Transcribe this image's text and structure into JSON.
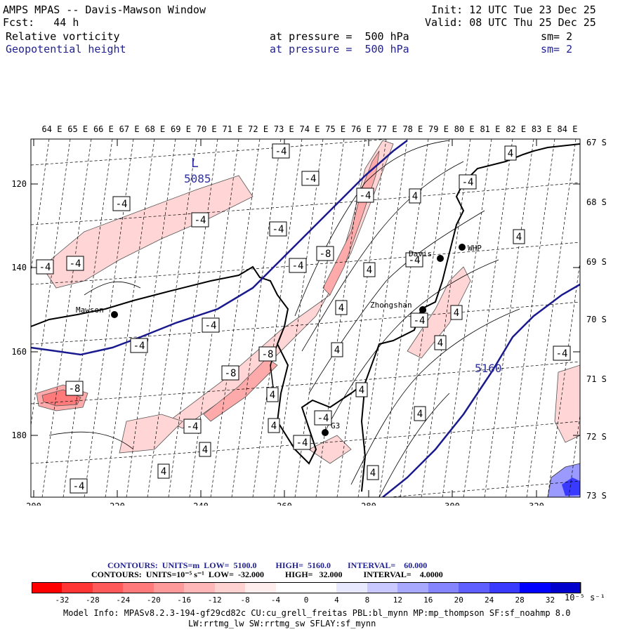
{
  "header": {
    "title": "AMPS MPAS -- Davis-Mawson Window",
    "init": "Init: 12 UTC Tue 23 Dec 25",
    "fcst": "Fcst:   44 h",
    "valid": "Valid: 08 UTC Thu 25 Dec 25",
    "field1_name": "Relative vorticity",
    "field1_level": "at pressure =  500 hPa",
    "field1_sm": "sm= 2",
    "field2_name": "Geopotential height",
    "field2_level": "at pressure =  500 hPa",
    "field2_sm": "sm= 2"
  },
  "map": {
    "top_lon_labels": [
      "64 E",
      "65 E",
      "66 E",
      "67 E",
      "68 E",
      "69 E",
      "70 E",
      "71 E",
      "72 E",
      "73 E",
      "74 E",
      "75 E",
      "76 E",
      "77 E",
      "78 E",
      "79 E",
      "80 E",
      "81 E",
      "82 E",
      "83 E",
      "84 E"
    ],
    "right_lat_labels": [
      "67 S",
      "68 S",
      "69 S",
      "70 S",
      "71 S",
      "72 S",
      "73 S"
    ],
    "left_y_labels": [
      "120",
      "140",
      "160",
      "180"
    ],
    "bottom_x_labels": [
      "200",
      "220",
      "240",
      "260",
      "280",
      "300",
      "320"
    ],
    "stations": [
      {
        "name": "Mawson"
      },
      {
        "name": "Davis"
      },
      {
        "name": "WHP"
      },
      {
        "name": "Zhongshan"
      },
      {
        "name": "G3"
      }
    ],
    "height_labels": {
      "low_marker": "L",
      "low_value": "5085",
      "contour_value": "5160"
    },
    "vort_labels": [
      "-4",
      "-4",
      "-4",
      "-4",
      "-4",
      "-4",
      "-4",
      "-4",
      "-8",
      "-4",
      "-4",
      "-4",
      "-4",
      "4",
      "4",
      "4",
      "4",
      "4",
      "4",
      "-4",
      "4",
      "-8",
      "-8",
      "-8",
      "4",
      "-4",
      "4",
      "4",
      "4",
      "-4",
      "-4",
      "-4",
      "4",
      "4",
      "-4",
      "-4",
      "4",
      "4"
    ]
  },
  "legend": {
    "contours1": "CONTOURS:  UNITS=m  LOW=  5100.0         HIGH=  5160.0        INTERVAL=    60.000",
    "contours2": "CONTOURS:  UNITS=10⁻⁵ s⁻¹  LOW=  -32.000          HIGH=   32.000          INTERVAL=    4.0000",
    "ticks": [
      "-32",
      "-28",
      "-24",
      "-20",
      "-16",
      "-12",
      "-8",
      "-4",
      "0",
      "4",
      "8",
      "12",
      "16",
      "20",
      "24",
      "28",
      "32"
    ],
    "units": "10⁻⁵ s⁻¹",
    "colors": [
      "#ff0000",
      "#ff3535",
      "#ff5a5a",
      "#ff7a7a",
      "#ff9a9a",
      "#ffb7b7",
      "#ffd2d2",
      "#ffecec",
      "#ffffff",
      "#ffffff",
      "#e8e8ff",
      "#c9c9ff",
      "#a8a8ff",
      "#8585ff",
      "#5f5fff",
      "#3a3aff",
      "#0000ff",
      "#0000cc"
    ]
  },
  "footer": {
    "model_info": "Model Info: MPASv8.2.3-194-gf29cd82c CU:cu_grell_freitas PBL:bl_mynn MP:mp_thompson SF:sf_noahmp 8.0",
    "model_info2": "LW:rrtmg_lw SW:rrtmg_sw SFLAY:sf_mynn"
  }
}
